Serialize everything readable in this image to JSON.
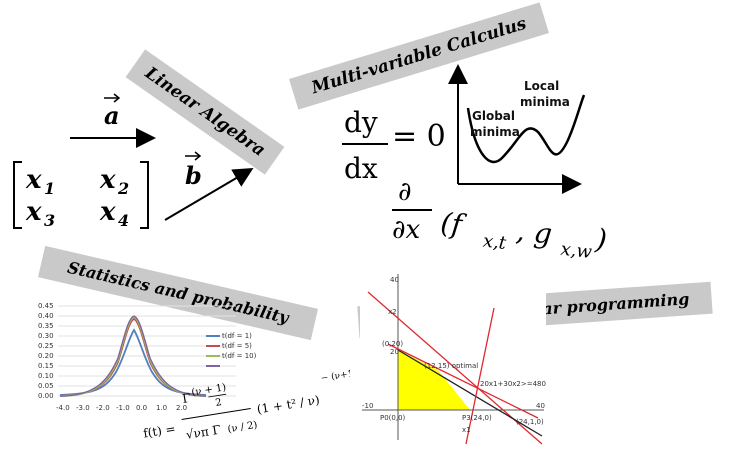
{
  "banners": {
    "linear_algebra": "Linear Algebra",
    "multivariable": "Multi-variable Calculus",
    "statistics": "Statistics and probability",
    "optimization": "Optimization, linear programming"
  },
  "vectors": {
    "a": "a",
    "b": "b"
  },
  "matrix": {
    "x1": "x",
    "x1_sub": "1",
    "x2": "x",
    "x2_sub": "2",
    "x3": "x",
    "x3_sub": "3",
    "x4": "x",
    "x4_sub": "4"
  },
  "calculus": {
    "dy": "dy",
    "dx": "dx",
    "equals_zero": "= 0",
    "partial": "∂",
    "partial_dx": "∂x",
    "func": "(f",
    "f_sub": "x,t",
    "comma_g": ", g",
    "g_sub": "x,w",
    "close": ")",
    "local_minima_1": "Local",
    "local_minima_2": "minima",
    "global_minima_1": "Global",
    "global_minima_2": "minima"
  },
  "stats_chart": {
    "y_ticks": [
      "0.45",
      "0.40",
      "0.35",
      "0.30",
      "0.25",
      "0.20",
      "0.15",
      "0.10",
      "0.05",
      "0.00"
    ],
    "x_ticks": [
      "-4.0",
      "-3.0",
      "-2.0",
      "-1.0",
      "0.0",
      "1.0",
      "2.0"
    ],
    "legend": [
      "t(df = 1)",
      "t(df = 5)",
      "t(df = 10)"
    ],
    "colors": [
      "#4f81bd",
      "#c0504d",
      "#9bbb59",
      "#8064a2"
    ]
  },
  "formula": {
    "lhs": "f(t) =",
    "gamma_num": "Γ",
    "num_paren": "(ν + 1)",
    "over2": "2",
    "sqrt": "√νπ Γ",
    "den_paren": "(ν / 2)",
    "bracket": "(1 + t² / ν)",
    "exponent": "− (ν+1)/2"
  },
  "opt_chart": {
    "labels": {
      "p020": "(0,20)",
      "p1215": "(12,15) optimal",
      "constraint": "20x1+30x2>=480",
      "p240": "P3(24,0)",
      "p000": "P0(0,0)",
      "p2440": "(24,1,0)",
      "y20": "20",
      "y40": "40",
      "x40": "40",
      "yaxis": "x2",
      "xaxis": "x1",
      "x_neg": "-10"
    },
    "fill_color": "#ffff00"
  }
}
